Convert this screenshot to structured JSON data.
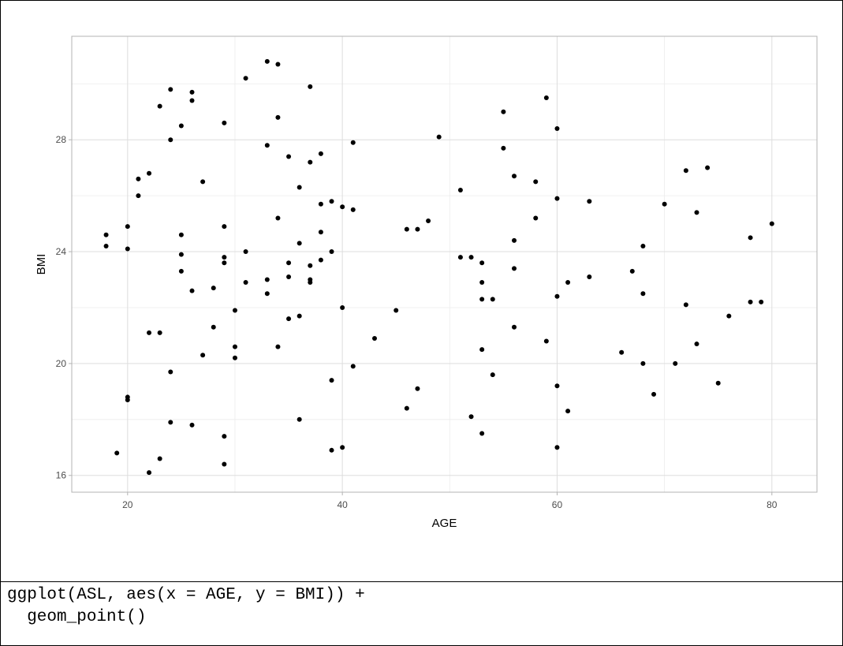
{
  "chart_data": {
    "type": "scatter",
    "xlabel": "AGE",
    "ylabel": "BMI",
    "xlim": [
      14.8,
      84.2
    ],
    "ylim": [
      15.4,
      31.7
    ],
    "xticks": [
      20,
      40,
      60,
      80
    ],
    "yticks": [
      16,
      20,
      24,
      28
    ],
    "xtick_labels": [
      "20",
      "40",
      "60",
      "80"
    ],
    "ytick_labels": [
      "16",
      "20",
      "24",
      "28"
    ],
    "grid": true,
    "theme": "light",
    "point_color": "#000000",
    "points": [
      [
        18,
        24.6
      ],
      [
        18,
        24.2
      ],
      [
        19,
        16.8
      ],
      [
        20,
        24.9
      ],
      [
        20,
        24.1
      ],
      [
        20,
        18.8
      ],
      [
        20,
        18.7
      ],
      [
        21,
        26.6
      ],
      [
        21,
        26.0
      ],
      [
        22,
        26.8
      ],
      [
        22,
        21.1
      ],
      [
        22,
        16.1
      ],
      [
        23,
        29.2
      ],
      [
        23,
        21.1
      ],
      [
        23,
        16.6
      ],
      [
        24,
        29.8
      ],
      [
        24,
        28.0
      ],
      [
        24,
        19.7
      ],
      [
        24,
        17.9
      ],
      [
        25,
        28.5
      ],
      [
        25,
        24.6
      ],
      [
        25,
        23.9
      ],
      [
        25,
        23.3
      ],
      [
        26,
        29.7
      ],
      [
        26,
        29.4
      ],
      [
        26,
        22.6
      ],
      [
        26,
        17.8
      ],
      [
        27,
        26.5
      ],
      [
        27,
        20.3
      ],
      [
        28,
        22.7
      ],
      [
        28,
        21.3
      ],
      [
        29,
        28.6
      ],
      [
        29,
        24.9
      ],
      [
        29,
        23.8
      ],
      [
        29,
        23.6
      ],
      [
        29,
        17.4
      ],
      [
        29,
        16.4
      ],
      [
        30,
        21.9
      ],
      [
        30,
        20.6
      ],
      [
        30,
        20.2
      ],
      [
        31,
        30.2
      ],
      [
        31,
        24.0
      ],
      [
        31,
        22.9
      ],
      [
        33,
        30.8
      ],
      [
        33,
        27.8
      ],
      [
        33,
        23.0
      ],
      [
        33,
        22.5
      ],
      [
        34,
        30.7
      ],
      [
        34,
        28.8
      ],
      [
        34,
        25.2
      ],
      [
        34,
        20.6
      ],
      [
        35,
        27.4
      ],
      [
        35,
        23.6
      ],
      [
        35,
        23.1
      ],
      [
        35,
        21.6
      ],
      [
        36,
        26.3
      ],
      [
        36,
        24.3
      ],
      [
        36,
        21.7
      ],
      [
        36,
        18.0
      ],
      [
        37,
        29.9
      ],
      [
        37,
        27.2
      ],
      [
        37,
        23.5
      ],
      [
        37,
        23.0
      ],
      [
        37,
        22.9
      ],
      [
        38,
        27.5
      ],
      [
        38,
        25.7
      ],
      [
        38,
        24.7
      ],
      [
        38,
        23.7
      ],
      [
        39,
        25.8
      ],
      [
        39,
        24.0
      ],
      [
        39,
        19.4
      ],
      [
        39,
        16.9
      ],
      [
        40,
        25.6
      ],
      [
        40,
        22.0
      ],
      [
        40,
        17.0
      ],
      [
        41,
        27.9
      ],
      [
        41,
        25.5
      ],
      [
        41,
        19.9
      ],
      [
        43,
        20.9
      ],
      [
        45,
        21.9
      ],
      [
        46,
        24.8
      ],
      [
        46,
        18.4
      ],
      [
        47,
        24.8
      ],
      [
        47,
        19.1
      ],
      [
        48,
        25.1
      ],
      [
        49,
        28.1
      ],
      [
        51,
        26.2
      ],
      [
        51,
        23.8
      ],
      [
        52,
        23.8
      ],
      [
        52,
        18.1
      ],
      [
        53,
        23.6
      ],
      [
        53,
        22.9
      ],
      [
        53,
        22.3
      ],
      [
        53,
        20.5
      ],
      [
        53,
        17.5
      ],
      [
        54,
        22.3
      ],
      [
        54,
        19.6
      ],
      [
        55,
        29.0
      ],
      [
        55,
        27.7
      ],
      [
        56,
        26.7
      ],
      [
        56,
        24.4
      ],
      [
        56,
        23.4
      ],
      [
        56,
        21.3
      ],
      [
        58,
        26.5
      ],
      [
        58,
        25.2
      ],
      [
        59,
        29.5
      ],
      [
        59,
        20.8
      ],
      [
        60,
        28.4
      ],
      [
        60,
        25.9
      ],
      [
        60,
        22.4
      ],
      [
        60,
        19.2
      ],
      [
        60,
        17.0
      ],
      [
        61,
        22.9
      ],
      [
        61,
        18.3
      ],
      [
        63,
        25.8
      ],
      [
        63,
        23.1
      ],
      [
        66,
        20.4
      ],
      [
        67,
        23.3
      ],
      [
        68,
        24.2
      ],
      [
        68,
        22.5
      ],
      [
        68,
        20.0
      ],
      [
        69,
        18.9
      ],
      [
        70,
        25.7
      ],
      [
        71,
        20.0
      ],
      [
        72,
        26.9
      ],
      [
        72,
        22.1
      ],
      [
        73,
        25.4
      ],
      [
        73,
        20.7
      ],
      [
        74,
        27.0
      ],
      [
        75,
        19.3
      ],
      [
        76,
        21.7
      ],
      [
        78,
        24.5
      ],
      [
        78,
        22.2
      ],
      [
        79,
        22.2
      ],
      [
        80,
        25.0
      ]
    ]
  },
  "code": {
    "line1": "ggplot(ASL, aes(x = AGE, y = BMI)) +",
    "line2": "  geom_point()"
  }
}
